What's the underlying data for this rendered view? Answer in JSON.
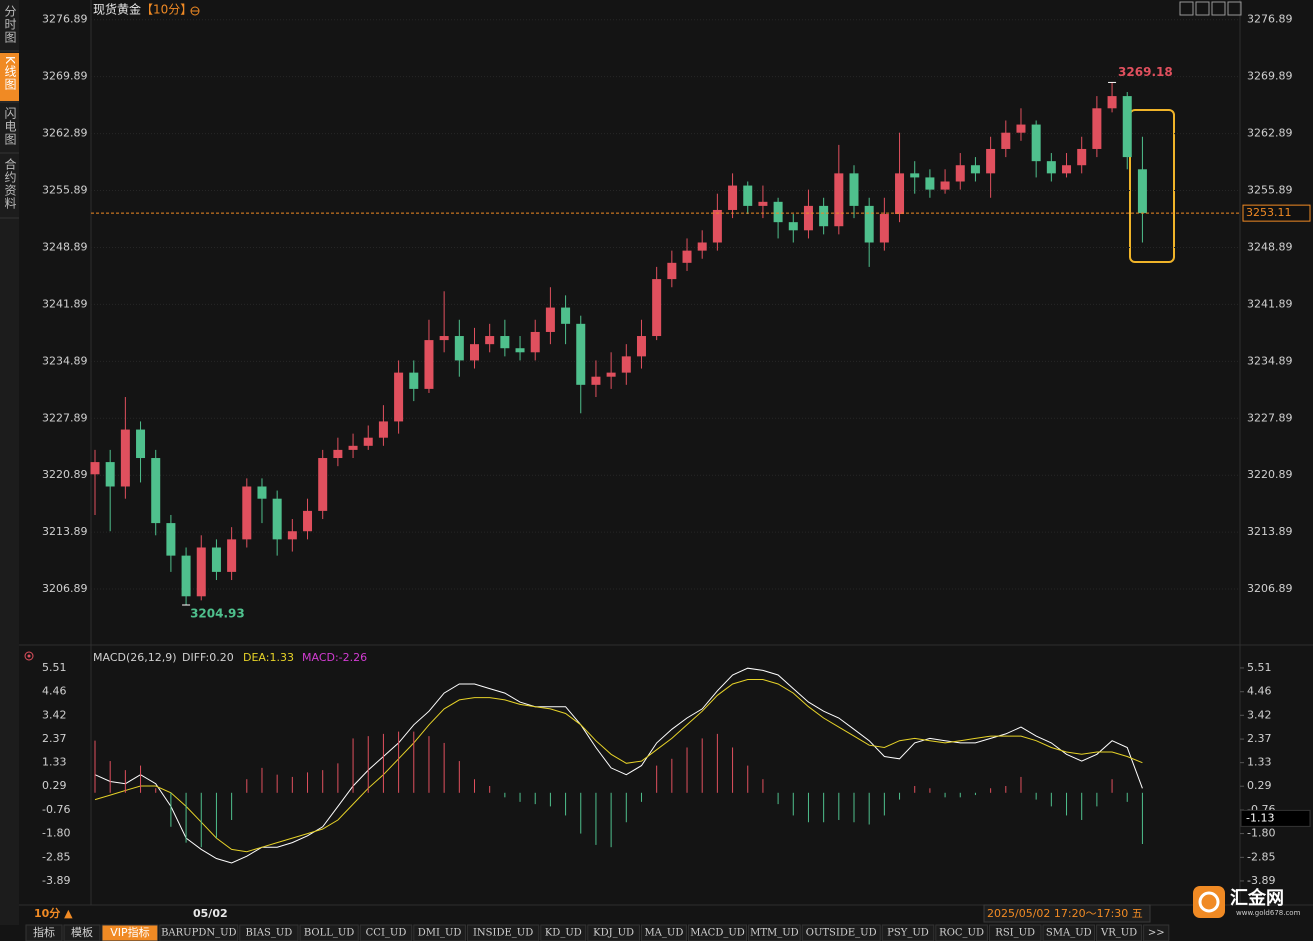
{
  "sidebar": [
    "分时图",
    "K线图",
    "闪电图",
    "合约资料"
  ],
  "sidebar_active": 1,
  "header": {
    "title": "现货黄金",
    "period": "【10分】"
  },
  "chart_data": [
    {
      "type": "candlestick",
      "up_color": "#e0505e",
      "down_color": "#4fc08d",
      "ylim": [
        3203.7,
        3278.7
      ],
      "yticks": [
        3206.89,
        3213.89,
        3220.89,
        3227.89,
        3234.89,
        3241.89,
        3248.89,
        3255.89,
        3262.89,
        3269.89,
        3276.89
      ],
      "grid": true,
      "current_price": 3253.11,
      "open": [
        3221,
        3222.5,
        3219.5,
        3226.5,
        3223,
        3215,
        3211,
        3206,
        3212,
        3209,
        3213,
        3219.5,
        3218,
        3213,
        3214,
        3216.5,
        3223,
        3224,
        3224.5,
        3225.5,
        3227.5,
        3233.5,
        3231.5,
        3237.5,
        3238,
        3235,
        3237,
        3238,
        3236.5,
        3236,
        3238.5,
        3241.5,
        3239.5,
        3232,
        3233,
        3233.5,
        3235.5,
        3238,
        3245,
        3247,
        3248.5,
        3249.5,
        3253.5,
        3256.5,
        3254,
        3254.5,
        3252,
        3251,
        3254,
        3251.5,
        3258,
        3254,
        3249.5,
        3253,
        3258,
        3257.5,
        3256,
        3257,
        3259,
        3258,
        3261,
        3263,
        3264,
        3259.5,
        3258,
        3259,
        3261,
        3266,
        3267.5,
        3258.5
      ],
      "high": [
        3224,
        3224,
        3230.5,
        3227.5,
        3224,
        3216,
        3212,
        3213.5,
        3213,
        3214.5,
        3220.5,
        3220.5,
        3219,
        3215.5,
        3218,
        3224,
        3225.5,
        3226,
        3227,
        3229.5,
        3235,
        3235,
        3240,
        3243.5,
        3240,
        3239,
        3239.5,
        3240,
        3238,
        3240,
        3244,
        3243,
        3240.5,
        3235,
        3236,
        3237,
        3240,
        3246.5,
        3248.5,
        3250,
        3251,
        3255.5,
        3258,
        3257,
        3256.5,
        3255,
        3253,
        3256,
        3255,
        3261.5,
        3259,
        3255,
        3255,
        3263,
        3259.5,
        3258.5,
        3258.5,
        3260.5,
        3260,
        3262.5,
        3264.5,
        3266,
        3264.5,
        3260.5,
        3260.5,
        3262.5,
        3267.5,
        3269.18,
        3268,
        3262.5
      ],
      "low": [
        3216,
        3214,
        3218,
        3220,
        3213.5,
        3209,
        3204.93,
        3205.5,
        3208,
        3208,
        3212,
        3215,
        3211,
        3211.5,
        3213,
        3215.5,
        3222,
        3223,
        3224,
        3224.5,
        3226,
        3230,
        3231,
        3236,
        3233,
        3234,
        3236,
        3235.5,
        3235,
        3235,
        3237,
        3237,
        3228.5,
        3230.5,
        3231.5,
        3232,
        3234,
        3237.5,
        3244,
        3246,
        3247.5,
        3248.5,
        3252.5,
        3253,
        3252.5,
        3250,
        3249.5,
        3250,
        3250.5,
        3250.5,
        3252.5,
        3246.5,
        3248.5,
        3252,
        3255.5,
        3255,
        3255.5,
        3256,
        3257,
        3255,
        3260,
        3262,
        3257.5,
        3257,
        3257.5,
        3258,
        3260,
        3265.5,
        3258.5,
        3249.5
      ],
      "close": [
        3222.5,
        3219.5,
        3226.5,
        3223,
        3215,
        3211,
        3206,
        3212,
        3209,
        3213,
        3219.5,
        3218,
        3213,
        3214,
        3216.5,
        3223,
        3224,
        3224.5,
        3225.5,
        3227.5,
        3233.5,
        3231.5,
        3237.5,
        3238,
        3235,
        3237,
        3238,
        3236.5,
        3236,
        3238.5,
        3241.5,
        3239.5,
        3232,
        3233,
        3233.5,
        3235.5,
        3238,
        3245,
        3247,
        3248.5,
        3249.5,
        3253.5,
        3256.5,
        3254,
        3254.5,
        3252,
        3251,
        3254,
        3251.5,
        3258,
        3254,
        3249.5,
        3253,
        3258,
        3257.5,
        3256,
        3257,
        3259,
        3258,
        3261,
        3263,
        3264,
        3259.5,
        3258,
        3259,
        3261,
        3266,
        3267.5,
        3260,
        3253.11
      ]
    },
    {
      "type": "macd",
      "title": "MACD(26,12,9)",
      "diff_label": "DIFF:0.20",
      "dea_label": "DEA:1.33",
      "macd_label": "MACD:-2.26",
      "ylim": [
        -4.29,
        5.86
      ],
      "yticks": [
        5.51,
        4.46,
        3.42,
        2.37,
        1.33,
        0.29,
        -0.76,
        {
          "value": -1.8,
          "label": "-1.80"
        },
        -2.85,
        -3.89
      ],
      "current_label": -1.13,
      "series": [
        {
          "name": "DIFF",
          "color": "#ffffff",
          "values": [
            0.8,
            0.5,
            0.4,
            0.8,
            0.4,
            -0.6,
            -2.0,
            -2.5,
            -2.9,
            -3.1,
            -2.8,
            -2.4,
            -2.4,
            -2.2,
            -1.9,
            -1.5,
            -0.6,
            0.3,
            1.0,
            1.6,
            2.2,
            3.0,
            3.6,
            4.4,
            4.8,
            4.8,
            4.6,
            4.4,
            4.0,
            3.8,
            3.8,
            3.8,
            3.0,
            2.0,
            1.1,
            0.8,
            1.2,
            2.2,
            2.8,
            3.3,
            3.7,
            4.5,
            5.2,
            5.5,
            5.4,
            5.2,
            4.6,
            4.0,
            3.6,
            3.3,
            2.8,
            2.3,
            1.6,
            1.5,
            2.2,
            2.4,
            2.3,
            2.2,
            2.2,
            2.4,
            2.6,
            2.9,
            2.5,
            2.2,
            1.7,
            1.4,
            1.7,
            2.3,
            2.0,
            0.2
          ]
        },
        {
          "name": "DEA",
          "color": "#e6d228",
          "values": [
            -0.3,
            -0.1,
            0.1,
            0.3,
            0.3,
            0,
            -0.6,
            -1.3,
            -2.0,
            -2.5,
            -2.6,
            -2.4,
            -2.2,
            -2.0,
            -1.8,
            -1.6,
            -1.2,
            -0.5,
            0.2,
            0.8,
            1.5,
            2.2,
            3.0,
            3.7,
            4.1,
            4.2,
            4.2,
            4.1,
            3.9,
            3.8,
            3.7,
            3.5,
            3.0,
            2.3,
            1.7,
            1.3,
            1.4,
            1.9,
            2.4,
            3.0,
            3.6,
            4.3,
            4.8,
            5.0,
            5.0,
            4.8,
            4.4,
            3.8,
            3.3,
            2.9,
            2.5,
            2.1,
            2.0,
            2.3,
            2.4,
            2.3,
            2.2,
            2.3,
            2.4,
            2.5,
            2.5,
            2.5,
            2.3,
            2.0,
            1.8,
            1.7,
            1.8,
            1.8,
            1.6,
            1.33
          ]
        },
        {
          "name": "MACD",
          "color": "#e0505e",
          "neg_color": "#4fc08d",
          "values": [
            2.3,
            1.4,
            1.0,
            1.2,
            0.2,
            -1.5,
            -2.2,
            -2.4,
            -2.0,
            -1.2,
            0.6,
            1.1,
            0.8,
            0.7,
            0.9,
            1.0,
            1.3,
            2.4,
            2.5,
            2.6,
            2.7,
            2.7,
            2.5,
            2.2,
            1.4,
            0.6,
            0.3,
            -0.2,
            -0.4,
            -0.5,
            -0.6,
            -1.0,
            -1.8,
            -2.3,
            -2.4,
            -1.3,
            -0.4,
            1.2,
            1.5,
            2.0,
            2.4,
            2.6,
            2.0,
            1.2,
            0.6,
            -0.5,
            -1.0,
            -1.3,
            -1.3,
            -1.2,
            -1.3,
            -1.4,
            -1.0,
            -0.3,
            0.3,
            0.2,
            -0.2,
            -0.2,
            -0.1,
            0.2,
            0.3,
            0.7,
            -0.3,
            -0.6,
            -1.0,
            -1.2,
            -0.6,
            0.6,
            -0.4,
            -2.26
          ]
        }
      ]
    }
  ],
  "footer": {
    "period": "10分 ▲",
    "date": "05/02",
    "time_range": "2025/05/02 17:20～17:30 五",
    "logo": "汇金网",
    "logo_url": "www.gold678.com"
  },
  "tabs": [
    "指标",
    "模板",
    "VIP指标",
    "BARUPDN_UD",
    "BIAS_UD",
    "BOLL_UD",
    "CCI_UD",
    "DMI_UD",
    "INSIDE_UD",
    "KD_UD",
    "KDJ_UD",
    "MA_UD",
    "MACD_UD",
    "MTM_UD",
    "OUTSIDE_UD",
    "PSY_UD",
    "ROC_UD",
    "RSI_UD",
    "SMA_UD",
    "VR_UD",
    ">>"
  ],
  "tab_active": 2
}
